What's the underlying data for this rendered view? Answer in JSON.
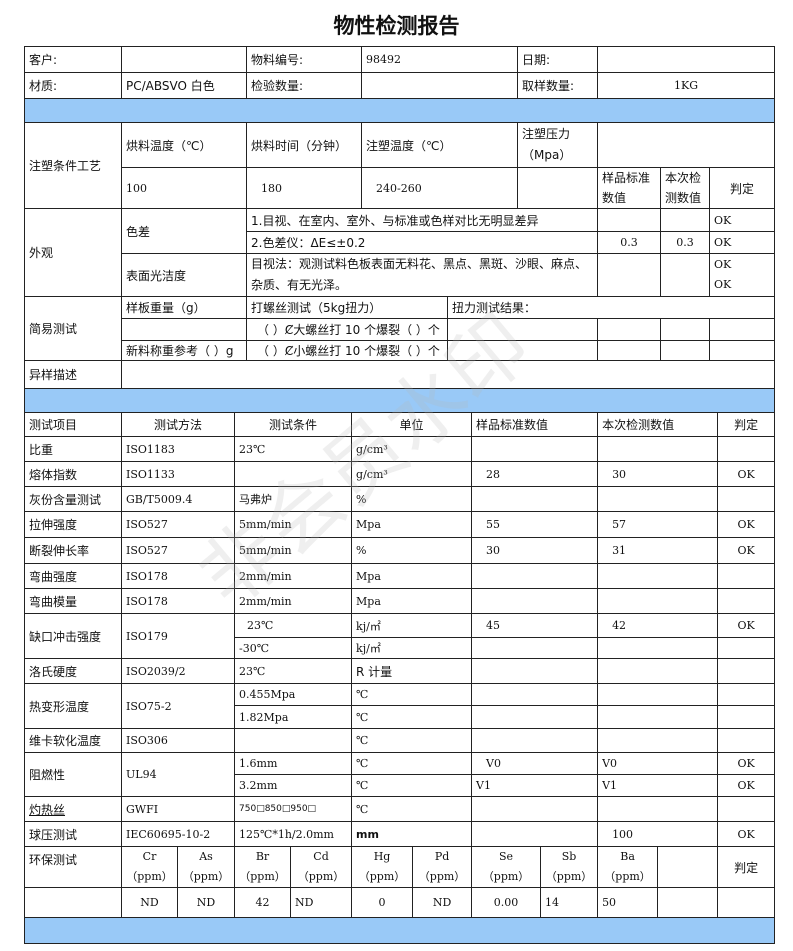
{
  "title": "物性检测报告",
  "watermark": "非会员水印",
  "colors": {
    "band": "#99c9f7",
    "border": "#222222"
  },
  "info": {
    "customer_label": "客户:",
    "customer": "",
    "material_no_label": "物料编号:",
    "material_no": "98492",
    "date_label": "日期:",
    "date": "",
    "material_label": "材质:",
    "material": "PC/ABSVO 白色",
    "inspect_qty_label": "检验数量:",
    "inspect_qty": "",
    "sample_qty_label": "取样数量:",
    "sample_qty": "1KG"
  },
  "molding": {
    "label": "注塑条件工艺",
    "h1": "烘料温度（℃）",
    "h2": "烘料时间（分钟）",
    "h3": "注塑温度（℃）",
    "h4": "注塑压力（Mpa）",
    "v1": "100",
    "v2": "180",
    "v3": "240-260",
    "v4": "",
    "std": "样品标准数值",
    "cur": "本次检测数值",
    "judge": "判定"
  },
  "appearance": {
    "label": "外观",
    "color_diff": "色差",
    "cd1": "1.目视、在室内、室外、与标准或色样对比无明显差异",
    "cd1_judge": "OK",
    "cd2": "2.色差仪：ΔE≤±0.2",
    "cd2_std": "0.3",
    "cd2_cur": "0.3",
    "cd2_judge": "OK",
    "surface": "表面光洁度",
    "surface_text": "目视法：观测试料色板表面无料花、黑点、黑斑、沙眼、麻点、杂质、有无光泽。",
    "surface_judge1": "OK",
    "surface_judge2": "OK"
  },
  "simple": {
    "label": "简易测试",
    "weight": "样板重量（g）",
    "screw": "打螺丝测试（5kg扭力）",
    "torque": "扭力测试结果：",
    "big": "（ ）Ȼ大螺丝打 10 个爆裂（ ）个",
    "new_weight": "新料称重参考（ ）g",
    "small": "（ ）Ȼ小螺丝打 10 个爆裂（ ）个"
  },
  "abnormal": {
    "label": "异样描述",
    "value": ""
  },
  "tests": {
    "headers": [
      "测试项目",
      "测试方法",
      "测试条件",
      "单位",
      "样品标准数值",
      "本次检测数值",
      "判定"
    ],
    "rows": [
      {
        "item": "比重",
        "method": "ISO1183",
        "cond": "23℃",
        "unit": "g/cm³",
        "std": "",
        "cur": "",
        "judge": ""
      },
      {
        "item": "熔体指数",
        "method": "ISO1133",
        "cond": "",
        "unit": "g/cm³",
        "std": "28",
        "cur": "30",
        "judge": "OK"
      },
      {
        "item": "灰份含量测试",
        "method": "GB/T5009.4",
        "cond": "马弗炉",
        "unit": "%",
        "std": "",
        "cur": "",
        "judge": ""
      },
      {
        "item": "拉伸强度",
        "method": "ISO527",
        "cond": "5mm/min",
        "unit": "Mpa",
        "std": "55",
        "cur": "57",
        "judge": "OK"
      },
      {
        "item": "断裂伸长率",
        "method": "ISO527",
        "cond": "5mm/min",
        "unit": "%",
        "std": "30",
        "cur": "31",
        "judge": "OK"
      },
      {
        "item": "弯曲强度",
        "method": "ISO178",
        "cond": "2mm/min",
        "unit": "Mpa",
        "std": "",
        "cur": "",
        "judge": ""
      },
      {
        "item": "弯曲模量",
        "method": "ISO178",
        "cond": "2mm/min",
        "unit": "Mpa",
        "std": "",
        "cur": "",
        "judge": ""
      }
    ],
    "impact": {
      "item": "缺口冲击强度",
      "method": "ISO179",
      "cond1": "23℃",
      "unit1": "kj/㎡",
      "std1": "45",
      "cur1": "42",
      "judge1": "OK",
      "cond2": "-30℃",
      "unit2": "kj/㎡"
    },
    "rockwell": {
      "item": "洛氏硬度",
      "method": "ISO2039/2",
      "cond": "23℃",
      "unit": "R 计量"
    },
    "hdt": {
      "item": "热变形温度",
      "method": "ISO75-2",
      "cond1": "0.455Mpa",
      "unit1": "℃",
      "cond2": "1.82Mpa",
      "unit2": "℃"
    },
    "vicat": {
      "item": "维卡软化温度",
      "method": "ISO306",
      "cond": "",
      "unit": "℃"
    },
    "flame": {
      "item": "阻燃性",
      "method": "UL94",
      "cond1": "1.6mm",
      "unit1": "℃",
      "std1": "V0",
      "cur1": "V0",
      "judge1": "OK",
      "cond2": "3.2mm",
      "unit2": "℃",
      "std2": "V1",
      "cur2": "V1",
      "judge2": "OK"
    },
    "glow": {
      "item": "灼热丝",
      "method": "GWFI",
      "cond": "750□850□950□",
      "unit": "℃"
    },
    "ball": {
      "item": "球压测试",
      "method": "IEC60695-10-2",
      "cond": "125℃*1h/2.0mm",
      "unit": "mm",
      "cur": "100",
      "judge": "OK"
    },
    "env": {
      "item": "环保测试",
      "judge": "判定",
      "elements": [
        {
          "name": "Cr",
          "unit": "（ppm）",
          "value": "ND"
        },
        {
          "name": "As",
          "unit": "（ppm）",
          "value": "ND"
        },
        {
          "name": "Br",
          "unit": "（ppm）",
          "value": "42"
        },
        {
          "name": "Cd",
          "unit": "（ppm）",
          "value": "ND"
        },
        {
          "name": "Hg",
          "unit": "（ppm）",
          "value": "0"
        },
        {
          "name": "Pd",
          "unit": "（ppm）",
          "value": "ND"
        },
        {
          "name": "Se",
          "unit": "（ppm）",
          "value": "0.00"
        },
        {
          "name": "Sb",
          "unit": "（ppm）",
          "value": "14"
        },
        {
          "name": "Ba",
          "unit": "（ppm）",
          "value": "50"
        }
      ]
    }
  }
}
